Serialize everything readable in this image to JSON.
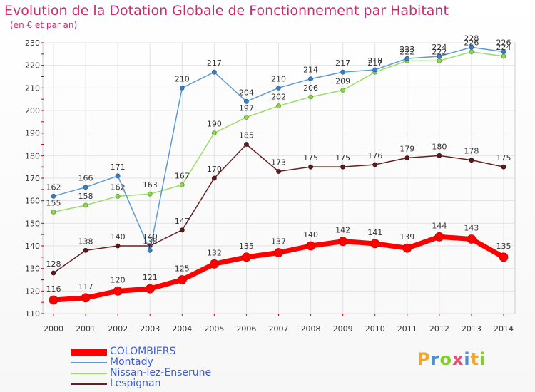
{
  "page": {
    "title": "Evolution de la Dotation Globale de Fonctionnement par Habitant",
    "subtitle": "(en € et par an)",
    "logo_text": "Proxiti"
  },
  "chart_data": {
    "type": "line",
    "title": "Evolution de la Dotation Globale de Fonctionnement par Habitant",
    "subtitle": "(en € et par an)",
    "xlabel": "",
    "ylabel": "",
    "x": [
      2000,
      2001,
      2002,
      2003,
      2004,
      2005,
      2006,
      2007,
      2008,
      2009,
      2010,
      2011,
      2012,
      2013,
      2014
    ],
    "ylim": [
      110,
      230
    ],
    "yticks": [
      110,
      120,
      130,
      140,
      150,
      160,
      170,
      180,
      190,
      200,
      210,
      220,
      230
    ],
    "grid": true,
    "legend_position": "bottom-left",
    "series": [
      {
        "name": "COLOMBIERS",
        "color": "#ff0000",
        "label_color": "#3b5bdb",
        "values": [
          116,
          117,
          120,
          121,
          125,
          132,
          135,
          137,
          140,
          142,
          141,
          139,
          144,
          143,
          135
        ]
      },
      {
        "name": "Montady",
        "color": "#5b9bd5",
        "label_color": "#3b5bdb",
        "values": [
          162,
          166,
          171,
          138,
          210,
          217,
          204,
          210,
          214,
          217,
          218,
          223,
          224,
          228,
          226
        ]
      },
      {
        "name": "Nissan-lez-Enserune",
        "color": "#99dd66",
        "label_color": "#3b5bdb",
        "values": [
          155,
          158,
          162,
          163,
          167,
          190,
          197,
          202,
          206,
          209,
          217,
          222,
          222,
          226,
          224
        ]
      },
      {
        "name": "Lespignan",
        "color": "#6b1e1e",
        "label_color": "#3b5bdb",
        "values": [
          128,
          138,
          140,
          140,
          147,
          170,
          185,
          173,
          175,
          175,
          176,
          179,
          180,
          178,
          175
        ]
      }
    ]
  }
}
